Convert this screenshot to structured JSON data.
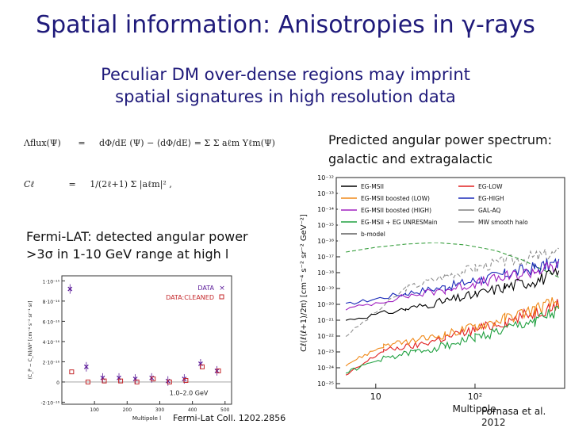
{
  "slide": {
    "title": "Spatial information: Anisotropies in γ-rays",
    "subtitle_line1": "Peculiar DM over-dense regions may imprint",
    "subtitle_line2": "spatial signatures in high resolution data",
    "right_caption_line1": "Predicted angular power spectrum:",
    "right_caption_line2": "galactic and extragalactic",
    "left_caption_line1": "Fermi-LAT: detected angular power",
    "left_caption_line2": ">3σ in 1-10 GeV range at high l",
    "credit_left": "Fermi-Lat Coll. 1202.2856",
    "credit_right": "Fornasa et al. 2012"
  },
  "formula": {
    "lhs1": "Λflux(Ψ)",
    "eq": "=",
    "rhs1": "dΦ/dE (Ψ) − ⟨dΦ/dE⟩ = Σ Σ aℓm Yℓm(Ψ)",
    "lhs2": "Cℓ",
    "rhs2": "1/(2ℓ+1) Σ |aℓm|² ,"
  },
  "chart_data": [
    {
      "type": "scatter",
      "ylabel": "(C_P − C_N)/W² [cm⁻⁴ s⁻² sr⁻¹ sr]",
      "xlabel": "Multipole l",
      "annotation": "1.0–2.0 GeV",
      "x_ticks": [
        "100",
        "200",
        "300",
        "400",
        "500"
      ],
      "y_ticks": [
        "1·10⁻¹⁵",
        "8·10⁻¹⁶",
        "6·10⁻¹⁶",
        "4·10⁻¹⁶",
        "2·10⁻¹⁶",
        "0",
        "-2·10⁻¹⁶"
      ],
      "xlim": [
        0,
        520
      ],
      "ylim": [
        -2.2e-16,
        1.05e-15
      ],
      "series": [
        {
          "name": "DATA",
          "color": "#5a1a99",
          "marker": "x",
          "x": [
            25,
            75,
            125,
            175,
            225,
            275,
            325,
            375,
            425,
            475
          ],
          "y": [
            9.2e-16,
            1.5e-16,
            4e-17,
            4e-17,
            3e-17,
            4e-17,
            1e-17,
            3e-17,
            1.8e-16,
            1.1e-16
          ]
        },
        {
          "name": "DATA:CLEANED",
          "color": "#c4272a",
          "marker": "square",
          "x": [
            30,
            80,
            130,
            180,
            230,
            280,
            330,
            380,
            430,
            480
          ],
          "y": [
            1e-16,
            0.0,
            1e-17,
            1e-17,
            0.0,
            3e-17,
            0.0,
            1.5e-17,
            1.5e-16,
            1.1e-16
          ]
        }
      ]
    },
    {
      "type": "line",
      "ylabel": "Cℓ(ℓ(ℓ+1)/2π) [cm⁻⁴ s⁻² sr⁻² GeV⁻²]",
      "xlabel": "Multipole",
      "x_ticks": [
        "10",
        "10²"
      ],
      "y_ticks": [
        "10⁻¹²",
        "10⁻¹³",
        "10⁻¹⁴",
        "10⁻¹⁵",
        "10⁻¹⁶",
        "10⁻¹⁷",
        "10⁻¹⁸",
        "10⁻¹⁹",
        "10⁻²⁰",
        "10⁻²¹",
        "10⁻²²",
        "10⁻²³",
        "10⁻²⁴",
        "10⁻²⁵"
      ],
      "scale": "log-log",
      "legend": [
        {
          "name": "EG-MSII",
          "color": "#000000"
        },
        {
          "name": "EG-LOW",
          "color": "#e02020"
        },
        {
          "name": "EG-MSII boosted (LOW)",
          "color": "#f08a1a"
        },
        {
          "name": "EG-HIGH",
          "color": "#1a2ab8"
        },
        {
          "name": "EG-MSII boosted (HIGH)",
          "color": "#a020c0"
        },
        {
          "name": "GAL-AQ",
          "color": "#808080"
        },
        {
          "name": "EG-MSII + EG UNRESMain",
          "color": "#20a040"
        },
        {
          "name": "MW smooth halo",
          "color": "#888888"
        },
        {
          "name": "b-model",
          "color": "#606060"
        }
      ],
      "series": [
        {
          "name": "GAL-AQ",
          "color": "#909090",
          "x": [
            5,
            20,
            50,
            100,
            200,
            400,
            700
          ],
          "y": [
            -22.0,
            -19.0,
            -18.2,
            -17.7,
            -17.3,
            -17.0,
            -16.8
          ]
        },
        {
          "name": "MW smooth halo",
          "color": "#3aa040",
          "x": [
            5,
            10,
            20,
            40,
            80,
            160,
            300,
            700
          ],
          "y": [
            -16.7,
            -16.4,
            -16.2,
            -16.1,
            -16.25,
            -16.6,
            -17.2,
            -18.3
          ]
        },
        {
          "name": "EG-HIGH",
          "color": "#1a2ab8",
          "x": [
            5,
            20,
            50,
            100,
            200,
            400,
            700
          ],
          "y": [
            -20.0,
            -19.3,
            -18.9,
            -18.5,
            -18.1,
            -17.7,
            -17.4
          ]
        },
        {
          "name": "EG-MSII boosted (HIGH)",
          "color": "#a020c0",
          "x": [
            5,
            20,
            50,
            100,
            200,
            400,
            700
          ],
          "y": [
            -20.3,
            -19.5,
            -19.1,
            -18.7,
            -18.3,
            -17.9,
            -17.6
          ]
        },
        {
          "name": "EG-MSII",
          "color": "#000000",
          "x": [
            5,
            20,
            50,
            100,
            200,
            400,
            700
          ],
          "y": [
            -21.0,
            -20.3,
            -19.8,
            -19.4,
            -18.9,
            -18.5,
            -18.1
          ]
        },
        {
          "name": "EG-LOW",
          "color": "#e02020",
          "x": [
            5,
            12,
            25,
            50,
            100,
            200,
            400,
            700
          ],
          "y": [
            -24.5,
            -22.9,
            -22.6,
            -22.1,
            -21.6,
            -21.1,
            -20.5,
            -20.0
          ]
        },
        {
          "name": "EG-MSII boosted (LOW)",
          "color": "#f08a1a",
          "x": [
            5,
            12,
            25,
            50,
            100,
            200,
            400,
            700
          ],
          "y": [
            -23.8,
            -22.6,
            -22.3,
            -21.9,
            -21.4,
            -20.9,
            -20.3,
            -19.8
          ]
        },
        {
          "name": "EG-MSII + EG UNRESMain",
          "color": "#20a040",
          "x": [
            5,
            12,
            25,
            50,
            100,
            200,
            400,
            700
          ],
          "y": [
            -24.3,
            -23.4,
            -23.0,
            -22.6,
            -22.1,
            -21.6,
            -21.0,
            -20.5
          ]
        }
      ]
    }
  ]
}
